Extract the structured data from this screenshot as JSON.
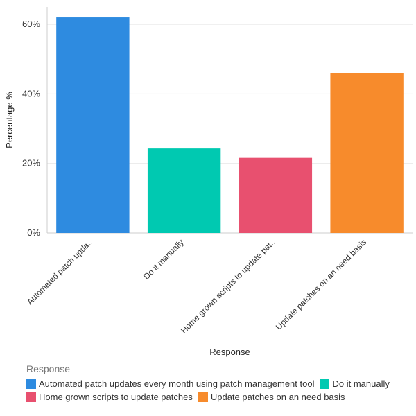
{
  "chart_data": {
    "type": "bar",
    "title": "",
    "xlabel": "Response",
    "ylabel": "Percentage %",
    "ylim": [
      0,
      65
    ],
    "yticks": [
      0,
      20,
      40,
      60
    ],
    "ytick_labels": [
      "0%",
      "20%",
      "40%",
      "60%"
    ],
    "grid": true,
    "categories": [
      "Automated patch updates every month using patch management tool",
      "Do it manually",
      "Home grown scripts to update patches",
      "Update patches on an need basis"
    ],
    "category_tick_labels": [
      "Automated patch upda..",
      "Do it manually",
      "Home grown scripts to update pat..",
      "Update patches on an need basis"
    ],
    "values": [
      62,
      24.3,
      21.6,
      46
    ],
    "colors": [
      "#2e8be0",
      "#00c9b1",
      "#e8506f",
      "#f78b2c"
    ],
    "legend": {
      "title": "Response",
      "placement": "bottom-left",
      "entries": [
        "Automated patch updates every month using patch management tool",
        "Do it manually",
        "Home grown scripts to update patches",
        "Update patches on an need basis"
      ]
    }
  }
}
